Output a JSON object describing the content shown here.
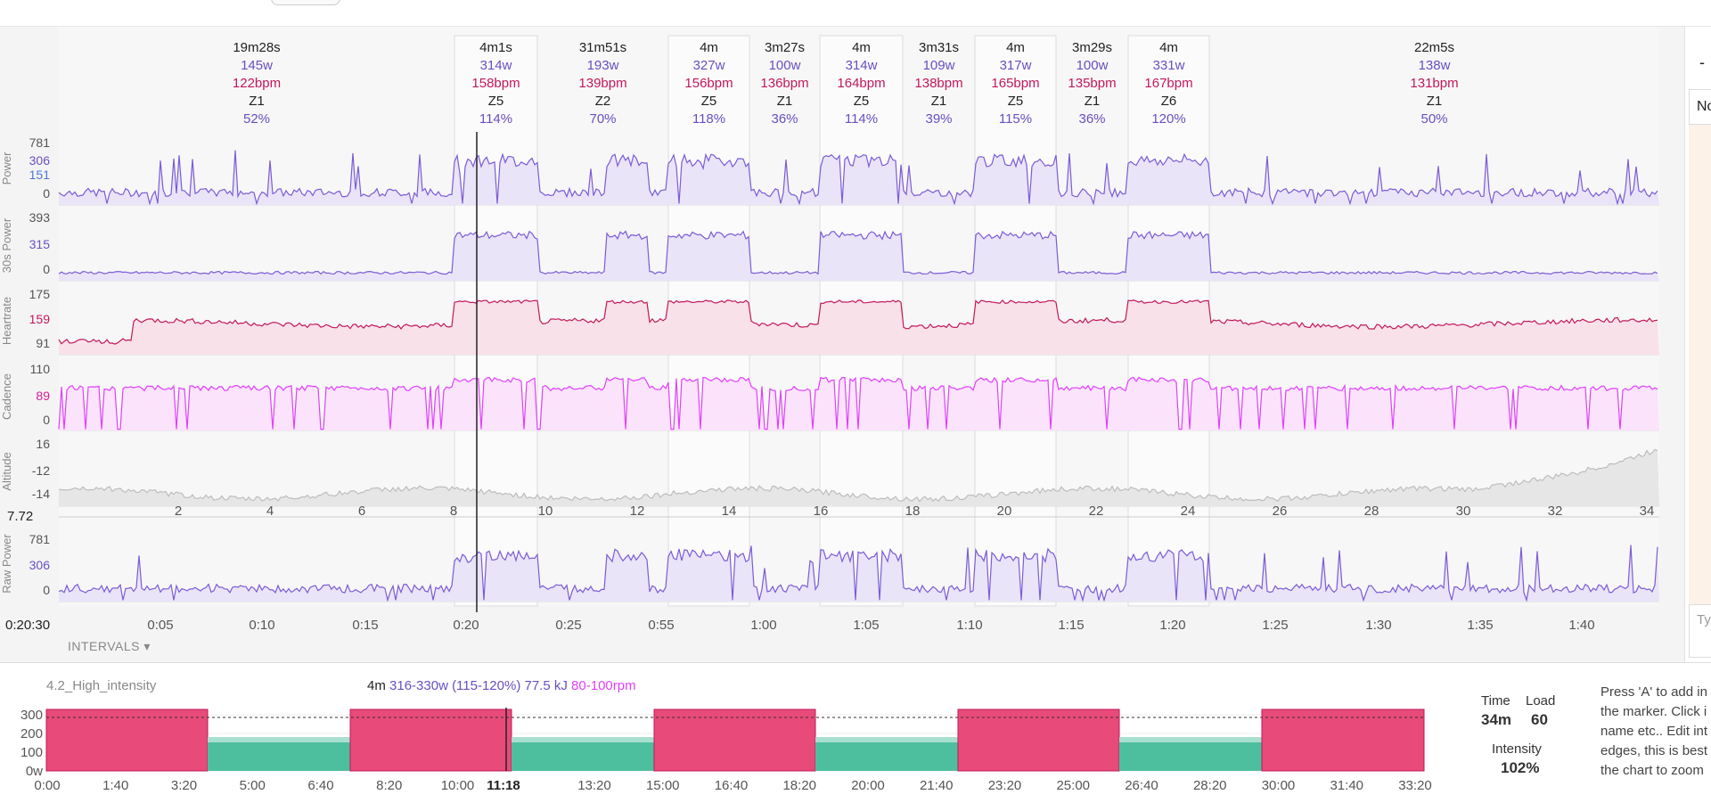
{
  "right_panel": {
    "no_label": "No",
    "type_placeholder": "Ty",
    "dash": "-"
  },
  "intervals_button": "INTERVALS ▾",
  "cursor_time": "0:20:30",
  "distance_left": "7.72",
  "interval_columns": [
    {
      "dur": "19m28s",
      "watts": "145w",
      "hr": "122bpm",
      "zone": "Z1",
      "pct": "52%",
      "work": false
    },
    {
      "dur": "4m1s",
      "watts": "314w",
      "hr": "158bpm",
      "zone": "Z5",
      "pct": "114%",
      "work": true
    },
    {
      "dur": "31m51s",
      "watts": "193w",
      "hr": "139bpm",
      "zone": "Z2",
      "pct": "70%",
      "work": false
    },
    {
      "dur": "4m",
      "watts": "327w",
      "hr": "156bpm",
      "zone": "Z5",
      "pct": "118%",
      "work": true
    },
    {
      "dur": "3m27s",
      "watts": "100w",
      "hr": "136bpm",
      "zone": "Z1",
      "pct": "36%",
      "work": false
    },
    {
      "dur": "4m",
      "watts": "314w",
      "hr": "164bpm",
      "zone": "Z5",
      "pct": "114%",
      "work": true
    },
    {
      "dur": "3m31s",
      "watts": "109w",
      "hr": "138bpm",
      "zone": "Z1",
      "pct": "39%",
      "work": false
    },
    {
      "dur": "4m",
      "watts": "317w",
      "hr": "165bpm",
      "zone": "Z5",
      "pct": "115%",
      "work": true
    },
    {
      "dur": "3m29s",
      "watts": "100w",
      "hr": "135bpm",
      "zone": "Z1",
      "pct": "36%",
      "work": false
    },
    {
      "dur": "4m",
      "watts": "331w",
      "hr": "167bpm",
      "zone": "Z6",
      "pct": "120%",
      "work": true
    },
    {
      "dur": "22m5s",
      "watts": "138w",
      "hr": "131bpm",
      "zone": "Z1",
      "pct": "50%",
      "work": false
    }
  ],
  "panels": [
    {
      "name": "Power",
      "ticks": [
        {
          "v": "781",
          "c": "#555"
        },
        {
          "v": "306",
          "c": "#6a4fc0"
        },
        {
          "v": "151",
          "c": "#4a78d6"
        },
        {
          "v": "0",
          "c": "#555"
        }
      ]
    },
    {
      "name": "30s Power",
      "ticks": [
        {
          "v": "393",
          "c": "#555"
        },
        {
          "v": "315",
          "c": "#6a4fc0"
        },
        {
          "v": "0",
          "c": "#555"
        }
      ]
    },
    {
      "name": "Heartrate",
      "ticks": [
        {
          "v": "175",
          "c": "#555"
        },
        {
          "v": "159",
          "c": "#c2185b"
        },
        {
          "v": "91",
          "c": "#555"
        }
      ]
    },
    {
      "name": "Cadence",
      "ticks": [
        {
          "v": "110",
          "c": "#555"
        },
        {
          "v": "89",
          "c": "#d81b9c"
        },
        {
          "v": "0",
          "c": "#555"
        }
      ]
    },
    {
      "name": "Altitude",
      "ticks": [
        {
          "v": "16",
          "c": "#555"
        },
        {
          "v": "-12",
          "c": "#555"
        },
        {
          "v": "-14",
          "c": "#555"
        }
      ]
    },
    {
      "name": "Raw Power",
      "ticks": [
        {
          "v": "781",
          "c": "#555"
        },
        {
          "v": "306",
          "c": "#6a4fc0"
        },
        {
          "v": "0",
          "c": "#555"
        }
      ]
    }
  ],
  "distance_ticks": [
    "2",
    "4",
    "6",
    "8",
    "10",
    "12",
    "14",
    "16",
    "18",
    "20",
    "22",
    "24",
    "26",
    "28",
    "30",
    "32",
    "34"
  ],
  "time_ticks": [
    "0:05",
    "0:10",
    "0:15",
    "0:20",
    "0:25",
    "0:55",
    "1:00",
    "1:05",
    "1:10",
    "1:15",
    "1:20",
    "1:25",
    "1:30",
    "1:35",
    "1:40"
  ],
  "workout": {
    "name": "4.2_High_intensity",
    "step_duration": "4m",
    "step_power": "316-330w (115-120%)",
    "step_energy": "77.5 kJ",
    "step_cadence": "80-100rpm",
    "y_ticks": [
      "300",
      "200",
      "100",
      "0w"
    ],
    "x_ticks": [
      "0:00",
      "1:40",
      "3:20",
      "5:00",
      "6:40",
      "8:20",
      "10:00",
      "11:18",
      "13:20",
      "15:00",
      "16:40",
      "18:20",
      "20:00",
      "21:40",
      "23:20",
      "25:00",
      "26:40",
      "28:20",
      "30:00",
      "31:40",
      "33:20"
    ],
    "time_label": "Time",
    "time_value": "34m",
    "load_label": "Load",
    "load_value": "60",
    "intensity_label": "Intensity",
    "intensity_value": "102%",
    "help_lines": [
      "Press 'A' to add in",
      "the marker. Click i",
      "name etc.. Edit int",
      "edges, this is best",
      "the chart to zoom"
    ]
  },
  "colors": {
    "power": "#7b5cd6",
    "hr": "#c2185b",
    "cadence": "#e040fb",
    "altitude": "#bdbdbd",
    "work_block": "#e84a7a",
    "rest_block": "#4dbf9f"
  }
}
